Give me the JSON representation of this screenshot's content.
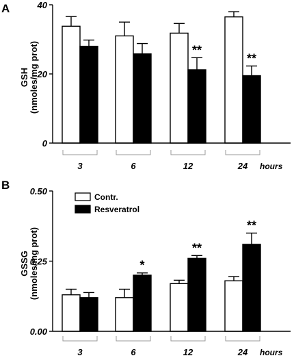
{
  "colors": {
    "control": "#ffffff",
    "treated": "#000000",
    "stroke": "#000000",
    "bracket": "#999999"
  },
  "chart_data": [
    {
      "panel": "A",
      "type": "bar",
      "categories": [
        "3",
        "6",
        "12",
        "24"
      ],
      "x_unit": "hours",
      "ylabel_line1": "GSH",
      "ylabel_line2": "(nmoles/mg prot)",
      "ylim": [
        0,
        40
      ],
      "yticks": [
        "0",
        "20",
        "40"
      ],
      "ytick_values": [
        0,
        20,
        40
      ],
      "series": [
        {
          "values": [
            33.8,
            31.0,
            31.8,
            36.5
          ],
          "errors": [
            2.8,
            4.0,
            2.8,
            1.5
          ],
          "sig": [
            "",
            "",
            "",
            ""
          ]
        },
        {
          "values": [
            28.0,
            25.8,
            21.2,
            19.5
          ],
          "errors": [
            1.8,
            3.0,
            3.5,
            2.8
          ],
          "sig": [
            "",
            "",
            "**",
            "**"
          ]
        }
      ]
    },
    {
      "panel": "B",
      "type": "bar",
      "categories": [
        "3",
        "6",
        "12",
        "24"
      ],
      "x_unit": "hours",
      "ylabel_line1": "GSSG",
      "ylabel_line2": "(nmoles/mg prot)",
      "ylim": [
        0,
        0.5
      ],
      "yticks": [
        "0.00",
        "0.25",
        "0.50"
      ],
      "ytick_values": [
        0,
        0.25,
        0.5
      ],
      "legend": [
        "Contr.",
        "Resveratrol"
      ],
      "series": [
        {
          "values": [
            0.13,
            0.12,
            0.17,
            0.18
          ],
          "errors": [
            0.02,
            0.03,
            0.012,
            0.015
          ],
          "sig": [
            "",
            "",
            "",
            ""
          ]
        },
        {
          "values": [
            0.12,
            0.2,
            0.26,
            0.31
          ],
          "errors": [
            0.018,
            0.008,
            0.01,
            0.04
          ],
          "sig": [
            "",
            "*",
            "**",
            "**"
          ]
        }
      ]
    }
  ]
}
